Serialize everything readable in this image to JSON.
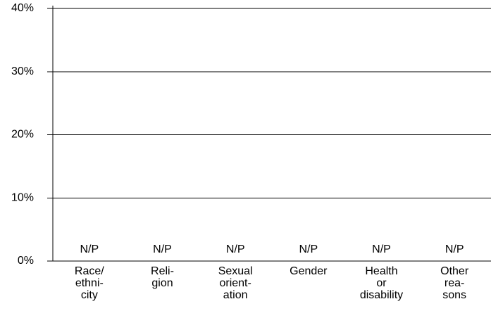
{
  "chart_data": {
    "type": "bar",
    "categories": [
      "Race/\nethni-\ncity",
      "Reli-\ngion",
      "Sexual\norient-\nation",
      "Gender",
      "Health\nor\ndisability",
      "Other\nrea-\nsons"
    ],
    "values": [
      null,
      null,
      null,
      null,
      null,
      null
    ],
    "value_labels": [
      "N/P",
      "N/P",
      "N/P",
      "N/P",
      "N/P",
      "N/P"
    ],
    "color": "#000000",
    "ylim": [
      0,
      40
    ],
    "yticks": [
      {
        "value": 0,
        "label": "0%"
      },
      {
        "value": 10,
        "label": "10%"
      },
      {
        "value": 20,
        "label": "20%"
      },
      {
        "value": 30,
        "label": "30%"
      },
      {
        "value": 40,
        "label": "40%"
      }
    ],
    "grid": true
  }
}
